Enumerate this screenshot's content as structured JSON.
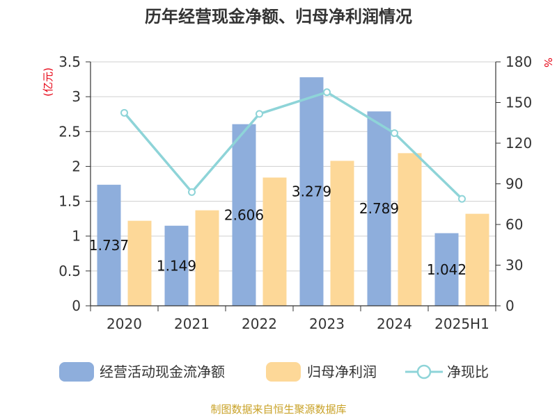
{
  "title": "历年经营现金净额、归母净利润情况",
  "source": "制图数据来自恒生聚源数据库",
  "chart_data": {
    "type": "bar",
    "categories": [
      "2020",
      "2021",
      "2022",
      "2023",
      "2024",
      "2025H1"
    ],
    "series": [
      {
        "name": "经营活动现金流净额",
        "kind": "bar",
        "axis": "left",
        "color": "#8eaedc",
        "values": [
          1.737,
          1.149,
          2.606,
          3.279,
          2.789,
          1.042
        ],
        "labels": [
          "1.737",
          "1.149",
          "2.606",
          "3.279",
          "2.789",
          "1.042"
        ]
      },
      {
        "name": "归母净利润",
        "kind": "bar",
        "axis": "left",
        "color": "#fdd898",
        "values": [
          1.22,
          1.37,
          1.84,
          2.08,
          2.19,
          1.32
        ]
      },
      {
        "name": "净现比",
        "kind": "line",
        "axis": "right",
        "color": "#8ed4d8",
        "values": [
          142.4,
          83.9,
          141.6,
          157.6,
          127.4,
          78.9
        ]
      }
    ],
    "y_left": {
      "unit": "(亿元)",
      "min": 0,
      "max": 3.5,
      "ticks": [
        "0",
        "0.5",
        "1",
        "1.5",
        "2",
        "2.5",
        "3",
        "3.5"
      ]
    },
    "y_right": {
      "unit": "%",
      "min": 0,
      "max": 180,
      "ticks": [
        "0",
        "30",
        "60",
        "90",
        "120",
        "150",
        "180"
      ]
    },
    "grid": true,
    "legend": "bottom"
  }
}
